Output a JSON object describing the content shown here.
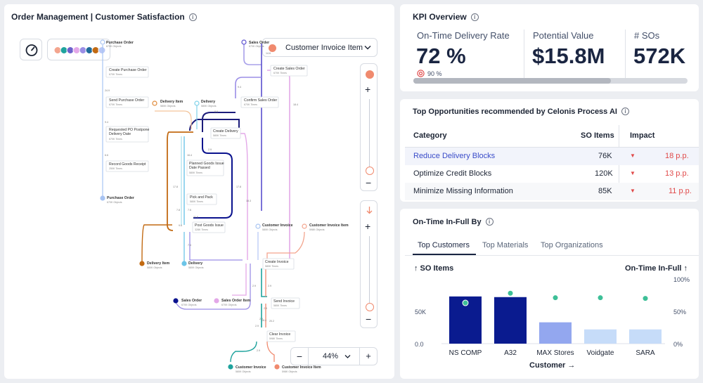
{
  "left_panel": {
    "title": "Order Management | Customer Satisfaction",
    "object_dropdown": {
      "color": "#f08a6e",
      "label": "Customer Invoice Item"
    },
    "zoom": {
      "value": "44%",
      "minus": "−",
      "plus": "+"
    },
    "slider_plus": "+",
    "slider_minus": "−",
    "slider2_plus": "+",
    "slider2_minus": "−",
    "legend_colors": [
      "#f3a58e",
      "#1fa39d",
      "#6d62cc",
      "#e3a8e8",
      "#9b8ee6",
      "#1f6c9b",
      "#c26a12",
      "#b9c8f7"
    ],
    "nodes": {
      "po_top": {
        "label": "Purchase Order",
        "sub": "670K Objects"
      },
      "create_po": {
        "label": "Create Purchase Order",
        "sub": "670K Times"
      },
      "send_po": {
        "label": "Send Purchase Order",
        "sub": "670K Times"
      },
      "postpone": {
        "label1": "Requested PO Postpone",
        "label2": "Delivery Date",
        "sub": "670K Times"
      },
      "record_gr": {
        "label": "Record Goods Receipt",
        "sub": "250K Times"
      },
      "po_bottom": {
        "label": "Purchase Order",
        "sub": "670K Objects"
      },
      "so_top": {
        "label": "Sales Order",
        "sub": "670K Objects"
      },
      "create_so": {
        "label": "Create Sales Order",
        "sub": "670K Times"
      },
      "confirm_so": {
        "label": "Confirm Sales Order",
        "sub": "670K Times"
      },
      "deliv_item_top": {
        "label": "Delivery Item",
        "sub": "580K Objects"
      },
      "deliv_top": {
        "label": "Delivery",
        "sub": "580K Objects"
      },
      "create_deliv": {
        "label": "Create Delivery",
        "sub": "580K Times"
      },
      "planned_gi": {
        "label1": "Planned Goods Issue",
        "label2": "Date Passed",
        "sub": "580K Times"
      },
      "pick_pack": {
        "label": "Pick and Pack",
        "sub": "580K Times"
      },
      "post_gi": {
        "label": "Post Goods Issue",
        "sub": "328K Times"
      },
      "deliv_item_bot": {
        "label": "Delivery Item",
        "sub": "580K Objects"
      },
      "deliv_bot": {
        "label": "Delivery",
        "sub": "580K Objects"
      },
      "cust_inv_top": {
        "label": "Customer Invoice",
        "sub": "580K Objects"
      },
      "cust_inv_item_top": {
        "label": "Customer Invoice Item",
        "sub": "598K Objects"
      },
      "create_inv": {
        "label": "Create Invoice",
        "sub": "580K Times"
      },
      "send_inv": {
        "label": "Send Invoice",
        "sub": "580K Times"
      },
      "clear_inv": {
        "label": "Clear Invoice",
        "sub": "598K Times"
      },
      "so_bot": {
        "label": "Sales Order",
        "sub": "670K Objects"
      },
      "so_item_bot": {
        "label": "Sales Order Item",
        "sub": "670K Objects"
      },
      "cust_inv_bot": {
        "label": "Customer Invoice",
        "sub": "580K Objects"
      },
      "cust_inv_item_bot": {
        "label": "Customer Invoice Item",
        "sub": "598K Objects"
      }
    },
    "edge_labels": [
      "24.9",
      "9.4",
      "6.6",
      "17.8",
      "7.8",
      "16.4",
      "17.8",
      "18.3",
      "18.4",
      "14.6",
      "7.6",
      "7.4",
      "11.6",
      "9.6",
      "2.9",
      "2.9",
      "2.9",
      "2.9",
      "2.9",
      "18.4",
      "20.2",
      "2.9",
      "9.4",
      "2.9",
      "8.6"
    ]
  },
  "kpi": {
    "title": "KPI Overview",
    "otd": {
      "label": "On-Time Delivery Rate",
      "value": "72 %",
      "target": "90 %"
    },
    "potential": {
      "label": "Potential Value",
      "value": "$15.8M"
    },
    "sos": {
      "label": "# SOs",
      "value": "572K"
    },
    "progress": 0.72
  },
  "opps": {
    "title": "Top Opportunities recommended by Celonis Process AI",
    "col_category": "Category",
    "col_so_items": "SO Items",
    "col_impact": "Impact",
    "rows": [
      {
        "category": "Reduce Delivery Blocks",
        "so_items": "76K",
        "impact": "18 p.p."
      },
      {
        "category": "Optimize Credit Blocks",
        "so_items": "120K",
        "impact": "13 p.p."
      },
      {
        "category": "Minimize Missing Information",
        "so_items": "85K",
        "impact": "11 p.p."
      }
    ]
  },
  "otif": {
    "title": "On-Time In-Full By",
    "tabs": [
      "Top Customers",
      "Top Materials",
      "Top Organizations"
    ],
    "left_axis_title": "↑ SO Items",
    "right_axis_title": "On-Time In-Full ↑",
    "x_title": "Customer →"
  },
  "chart_data": {
    "type": "bar",
    "categories": [
      "NS COMP",
      "A32",
      "MAX Stores",
      "Voidgate",
      "SARA"
    ],
    "series": [
      {
        "name": "SO Items",
        "values": [
          73000,
          72000,
          33000,
          22000,
          22000
        ]
      },
      {
        "name": "On-Time In-Full",
        "values": [
          63,
          78,
          71,
          71,
          70
        ]
      }
    ],
    "left_ticks": [
      "0.0",
      "50K"
    ],
    "right_ticks": [
      "0%",
      "50%",
      "100%"
    ],
    "ylim_left": [
      0,
      100000
    ],
    "ylim_right": [
      0,
      100
    ],
    "bar_colors": [
      "#0a1b8f",
      "#0a1b8f",
      "#93a7ef",
      "#c6dcf9",
      "#c6dcf9"
    ],
    "marker_color": "#3dbf97",
    "grid": false
  }
}
